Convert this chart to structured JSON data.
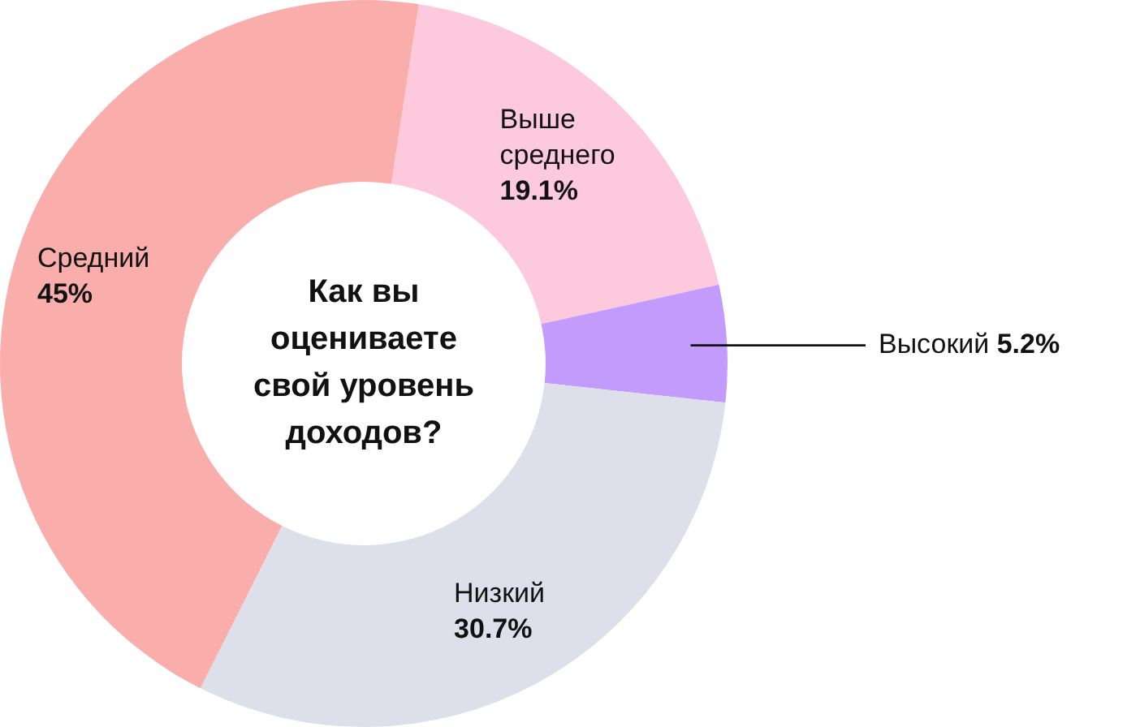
{
  "chart_data": {
    "type": "donut",
    "title": "Как вы оцениваете свой уровень доходов?",
    "categories": [
      "Выше среднего",
      "Высокий",
      "Низкий",
      "Средний"
    ],
    "values": [
      19.1,
      5.2,
      30.7,
      45
    ],
    "value_labels": [
      "19.1%",
      "5.2%",
      "30.7%",
      "45%"
    ],
    "colors": [
      "#fdc9dc",
      "#c29bfc",
      "#dde0ea",
      "#f9aeab"
    ]
  }
}
